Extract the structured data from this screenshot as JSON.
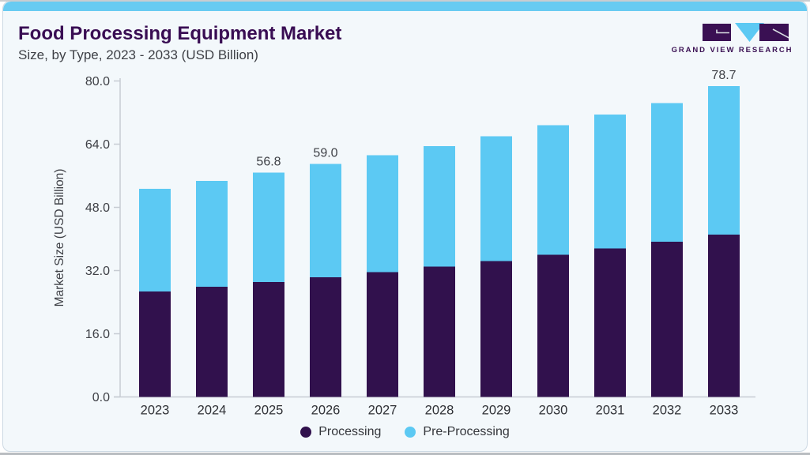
{
  "header": {
    "title": "Food Processing Equipment Market",
    "subtitle": "Size, by Type, 2023 - 2033 (USD Billion)"
  },
  "logo": {
    "brand": "GRAND VIEW RESEARCH",
    "mark_color": "#3a1053",
    "triangle_color": "#5cc9f3"
  },
  "colors": {
    "processing": "#31114d",
    "pre_processing": "#5cc9f3",
    "accent_strip": "#68cbf2",
    "card_background": "#f3f8fb",
    "axis_line": "#c7ccd3",
    "axis_text": "#3e4046",
    "category_text": "#2f3136",
    "data_label_text": "#3e4046",
    "title_text": "#390d53"
  },
  "chart_data": {
    "type": "bar",
    "stacked": true,
    "title": "Food Processing Equipment Market Size, by Type, 2023 - 2033 (USD Billion)",
    "categories": [
      "2023",
      "2024",
      "2025",
      "2026",
      "2027",
      "2028",
      "2029",
      "2030",
      "2031",
      "2032",
      "2033"
    ],
    "series": [
      {
        "name": "Processing",
        "color": "#31114d",
        "values": [
          26.7,
          27.9,
          29.1,
          30.3,
          31.6,
          33.0,
          34.4,
          36.0,
          37.6,
          39.3,
          41.1
        ]
      },
      {
        "name": "Pre-Processing",
        "color": "#5cc9f3",
        "values": [
          26.0,
          26.8,
          27.7,
          28.7,
          29.6,
          30.5,
          31.6,
          32.8,
          33.9,
          35.1,
          37.6
        ]
      }
    ],
    "totals": [
      52.7,
      54.7,
      56.8,
      59.0,
      61.2,
      63.5,
      66.0,
      68.8,
      71.5,
      74.4,
      78.7
    ],
    "bar_labels": {
      "2025": "56.8",
      "2026": "59.0",
      "2033": "78.7"
    },
    "xlabel": "",
    "ylabel": "Market Size (USD Billion)",
    "ylim": [
      0,
      80
    ],
    "yticks": [
      "0.0",
      "16.0",
      "32.0",
      "48.0",
      "64.0",
      "80.0"
    ],
    "grid": false,
    "legend_position": "bottom"
  }
}
